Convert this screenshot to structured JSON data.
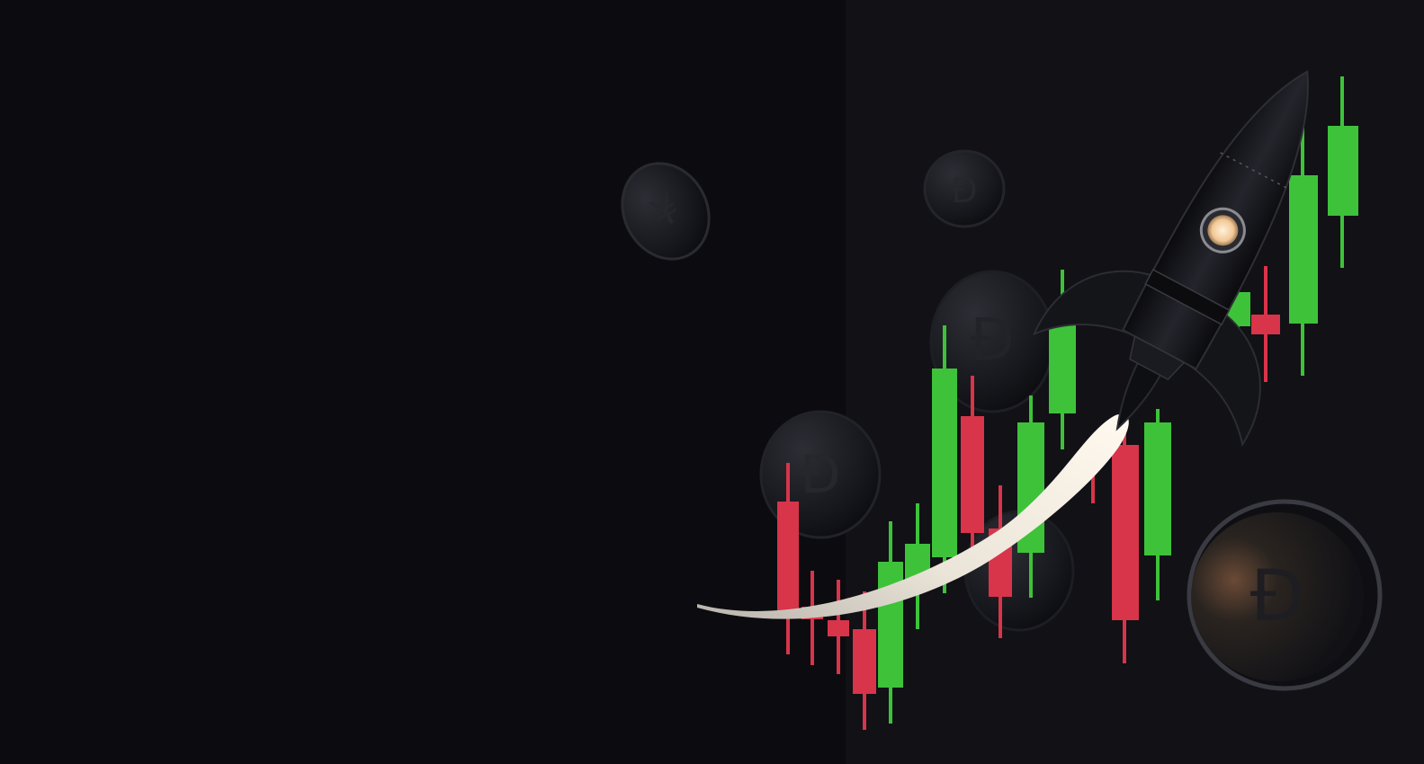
{
  "colors": {
    "background": "#0c0c10",
    "panel": "#111116",
    "bull": "#3ec23a",
    "bear": "#d8344a",
    "coin": "#1b1c22",
    "rocket": "#16171c",
    "flame": "#f4efe6"
  },
  "icons": {
    "rocket": "rocket-icon",
    "coin": "crypto-coin-icon",
    "chart": "candlestick-chart"
  }
}
